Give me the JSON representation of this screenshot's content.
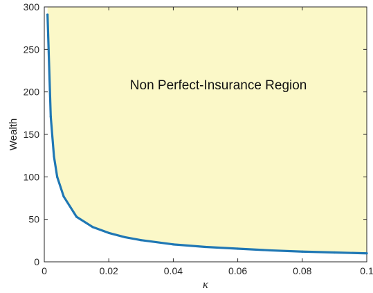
{
  "chart_data": {
    "type": "area",
    "title": "",
    "xlabel": "κ",
    "ylabel": "Wealth",
    "xlim": [
      0,
      0.1
    ],
    "ylim": [
      0,
      300
    ],
    "grid": false,
    "legend": "none",
    "x_ticks": [
      0,
      0.02,
      0.04,
      0.06,
      0.08,
      0.1
    ],
    "x_tick_labels": [
      "0",
      "0.02",
      "0.04",
      "0.06",
      "0.08",
      "0.1"
    ],
    "y_ticks": [
      0,
      50,
      100,
      150,
      200,
      250,
      300
    ],
    "y_tick_labels": [
      "0",
      "50",
      "100",
      "150",
      "200",
      "250",
      "300"
    ],
    "annotations": [
      {
        "text": "Non Perfect-Insurance Region",
        "x": 0.054,
        "y": 203
      }
    ],
    "series": [
      {
        "x": [
          0.001,
          0.002,
          0.003,
          0.004,
          0.006,
          0.01,
          0.015,
          0.02,
          0.025,
          0.03,
          0.04,
          0.05,
          0.06,
          0.07,
          0.08,
          0.09,
          0.1
        ],
        "y": [
          291,
          171,
          124,
          100,
          77,
          53,
          41,
          34,
          29,
          25.5,
          20.5,
          17.5,
          15.5,
          13.5,
          12,
          11,
          10
        ]
      }
    ],
    "colors": {
      "line": "#1f77b4",
      "fill": "#fbf8c8",
      "axis": "#262626"
    }
  }
}
